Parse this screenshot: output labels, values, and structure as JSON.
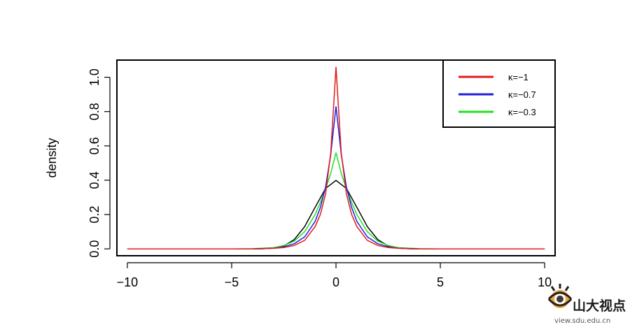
{
  "chart_data": {
    "type": "line",
    "title": "",
    "xlabel": "",
    "ylabel": "density",
    "xlim": [
      -10.5,
      10.5
    ],
    "ylim": [
      -0.04,
      1.1
    ],
    "x_ticks": [
      -10,
      -5,
      0,
      5,
      10
    ],
    "y_ticks": [
      0.0,
      0.2,
      0.4,
      0.6,
      0.8,
      1.0
    ],
    "x_tick_labels": [
      "−10",
      "−5",
      "0",
      "5",
      "10"
    ],
    "y_tick_labels": [
      "0.0",
      "0.2",
      "0.4",
      "0.6",
      "0.8",
      "1.0"
    ],
    "grid": false,
    "legend_position": "top-right",
    "series": [
      {
        "name": "κ=−1",
        "color": "#e31a1c",
        "x": [
          -10,
          -5,
          -4,
          -3,
          -2.5,
          -2,
          -1.5,
          -1,
          -0.75,
          -0.5,
          -0.25,
          0,
          0.25,
          0.5,
          0.75,
          1,
          1.5,
          2,
          2.5,
          3,
          4,
          5,
          10
        ],
        "y": [
          0.0,
          0.0,
          0.0,
          0.003,
          0.008,
          0.02,
          0.05,
          0.13,
          0.2,
          0.32,
          0.56,
          1.06,
          0.56,
          0.32,
          0.2,
          0.13,
          0.05,
          0.02,
          0.008,
          0.003,
          0.0,
          0.0,
          0.0
        ]
      },
      {
        "name": "κ=−0.7",
        "color": "#1f1fd6",
        "x": [
          -10,
          -5,
          -4,
          -3,
          -2.5,
          -2,
          -1.5,
          -1,
          -0.75,
          -0.5,
          -0.25,
          0,
          0.25,
          0.5,
          0.75,
          1,
          1.5,
          2,
          2.5,
          3,
          4,
          5,
          10
        ],
        "y": [
          0.0,
          0.0,
          0.0,
          0.004,
          0.012,
          0.03,
          0.07,
          0.16,
          0.24,
          0.36,
          0.55,
          0.83,
          0.55,
          0.36,
          0.24,
          0.16,
          0.07,
          0.03,
          0.012,
          0.004,
          0.0,
          0.0,
          0.0
        ]
      },
      {
        "name": "κ=−0.3",
        "color": "#22e022",
        "x": [
          -10,
          -5,
          -4,
          -3,
          -2.5,
          -2,
          -1.5,
          -1,
          -0.75,
          -0.5,
          -0.25,
          0,
          0.25,
          0.5,
          0.75,
          1,
          1.5,
          2,
          2.5,
          3,
          4,
          5,
          10
        ],
        "y": [
          0.0,
          0.0,
          0.001,
          0.007,
          0.02,
          0.045,
          0.1,
          0.2,
          0.27,
          0.35,
          0.44,
          0.56,
          0.44,
          0.35,
          0.27,
          0.2,
          0.1,
          0.045,
          0.02,
          0.007,
          0.001,
          0.0,
          0.0
        ]
      },
      {
        "color": "#000000",
        "x": [
          -4,
          -3.5,
          -3,
          -2.5,
          -2,
          -1.5,
          -1,
          -0.5,
          0,
          0.5,
          1,
          1.5,
          2,
          2.5,
          3,
          3.5,
          4
        ],
        "y": [
          0.0001,
          0.0009,
          0.0044,
          0.0175,
          0.054,
          0.13,
          0.242,
          0.352,
          0.399,
          0.352,
          0.242,
          0.13,
          0.054,
          0.0175,
          0.0044,
          0.0009,
          0.0001
        ]
      }
    ]
  },
  "watermark": {
    "brand": "山大视点",
    "url": "view.sdu.edu.cn"
  }
}
